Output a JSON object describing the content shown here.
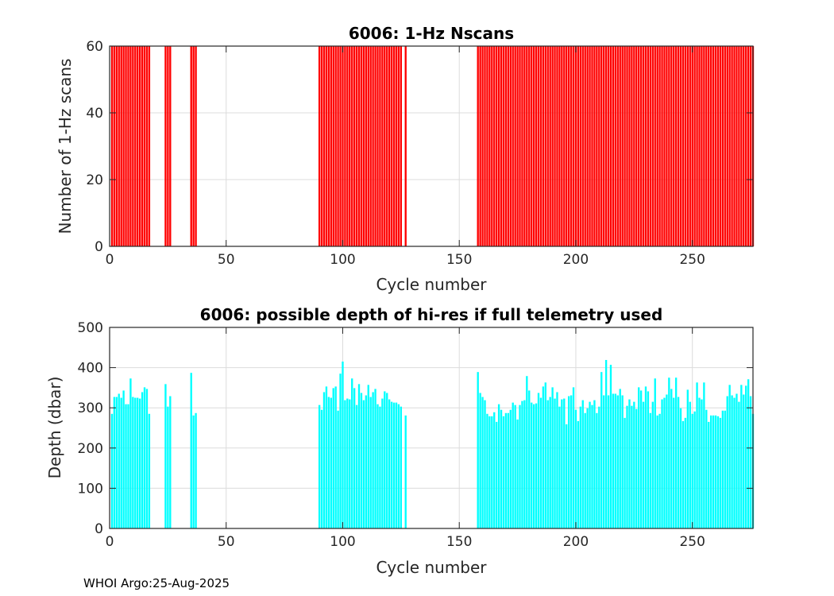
{
  "footer": "WHOI Argo:25-Aug-2025",
  "colors": {
    "top_bars": "#ff0000",
    "bottom_bars": "#00ffff",
    "grid": "#dcdcdc",
    "axis": "#262626"
  },
  "chart_data": [
    {
      "type": "bar",
      "title": "6006: 1-Hz Nscans",
      "xlabel": "Cycle number",
      "ylabel": "Number of 1-Hz scans",
      "xlim": [
        0,
        276
      ],
      "ylim": [
        0,
        60
      ],
      "xticks": [
        0,
        50,
        100,
        150,
        200,
        250
      ],
      "yticks": [
        0,
        20,
        40,
        60
      ],
      "grid": true,
      "x": "same_as_bottom",
      "value": 60
    },
    {
      "type": "bar",
      "title": "6006: possible depth of hi-res if full telemetry used",
      "xlabel": "Cycle number",
      "ylabel": "Depth (dbar)",
      "xlim": [
        0,
        276
      ],
      "ylim": [
        0,
        500
      ],
      "xticks": [
        0,
        50,
        100,
        150,
        200,
        250
      ],
      "yticks": [
        0,
        100,
        200,
        300,
        400,
        500
      ],
      "grid": true,
      "segments": [
        {
          "start": 1,
          "values": [
            285,
            327,
            327,
            335,
            325,
            343,
            309,
            309,
            373,
            327,
            325,
            325,
            323,
            339,
            351,
            347,
            285
          ]
        },
        {
          "start": 24,
          "values": [
            359,
            303,
            329
          ]
        },
        {
          "start": 35,
          "values": [
            387,
            281,
            287
          ]
        },
        {
          "start": 90,
          "values": [
            307,
            295,
            339,
            353,
            327,
            325,
            349,
            353,
            293,
            385,
            415,
            319,
            323,
            321,
            373,
            349,
            307,
            359,
            337,
            319,
            331,
            357,
            327,
            339,
            347,
            309,
            303,
            323,
            341,
            337,
            321,
            315,
            313,
            313,
            309,
            303
          ]
        },
        {
          "start": 127,
          "values": [
            281
          ]
        },
        {
          "start": 158,
          "values": [
            389,
            337,
            327,
            319,
            285,
            279,
            279,
            289,
            265,
            309,
            295,
            279,
            287,
            287,
            295,
            313,
            307,
            271,
            307,
            317,
            319,
            379,
            343,
            313,
            309,
            311,
            337,
            325,
            353,
            363,
            319,
            327,
            351,
            323,
            339,
            303,
            321,
            323,
            259,
            329,
            331,
            351,
            295,
            267,
            303,
            319,
            287,
            299,
            315,
            307,
            319,
            287,
            303,
            389,
            331,
            419,
            331,
            407,
            335
          ]
        },
        {
          "start": 217,
          "values": [
            335,
            331,
            347,
            331,
            275,
            305,
            321,
            305,
            315,
            297,
            351,
            343,
            315,
            353,
            341,
            287,
            315,
            373,
            281,
            285,
            321,
            325,
            333,
            375,
            347,
            325,
            375,
            327,
            299,
            267,
            275,
            345,
            315,
            285,
            291,
            363,
            325,
            321,
            363,
            295,
            265,
            281,
            281,
            281,
            279,
            275,
            293,
            293,
            329,
            357,
            331,
            325,
            335,
            315,
            357,
            333,
            355,
            371,
            329,
            285
          ]
        }
      ]
    }
  ]
}
